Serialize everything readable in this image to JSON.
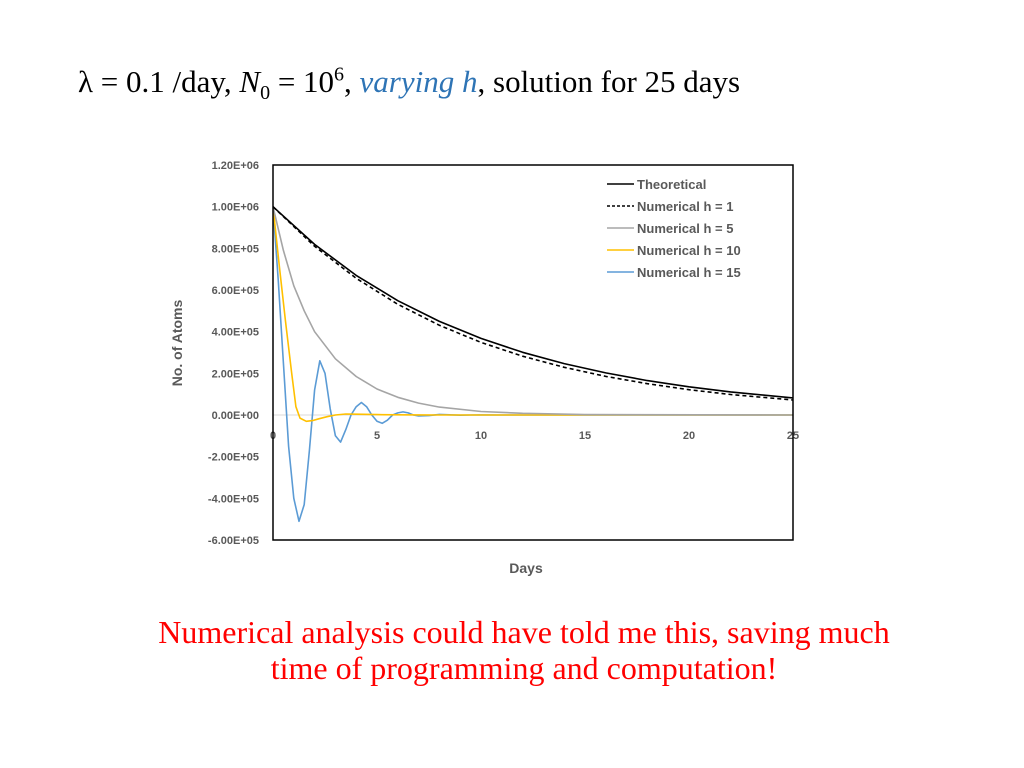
{
  "slide": {
    "title": {
      "lambda_symbol": "λ",
      "lambda_eq": " = 0.1 /day, ",
      "n_symbol": "N",
      "n_subscript": "0",
      "n_eq": " = 10",
      "n_exponent": "6",
      "separator": ", ",
      "highlight": "varying h",
      "rest": ", solution for 25 days",
      "highlight_color": "#2e74b5"
    },
    "conclusion": {
      "line1": "Numerical analysis could have told me this, saving much",
      "line2": "time of programming and computation!",
      "color": "#ff0000"
    }
  },
  "chart_data": {
    "type": "line",
    "title": "",
    "xlabel": "Days",
    "ylabel": "No. of Atoms",
    "xlim": [
      0,
      25
    ],
    "ylim": [
      -600000,
      1200000
    ],
    "x_ticks": [
      0,
      5,
      10,
      15,
      20,
      25
    ],
    "x_tick_labels": [
      "0",
      "5",
      "10",
      "15",
      "20",
      "25"
    ],
    "y_ticks": [
      1200000,
      1000000,
      800000,
      600000,
      400000,
      200000,
      0,
      -200000,
      -400000,
      -600000
    ],
    "y_tick_labels": [
      "1.20E+06",
      "1.00E+06",
      "8.00E+05",
      "6.00E+05",
      "4.00E+05",
      "2.00E+05",
      "0.00E+00",
      "-2.00E+05",
      "-4.00E+05",
      "-6.00E+05"
    ],
    "grid": false,
    "legend_position": "top-right",
    "series": [
      {
        "name": "Theoretical",
        "color": "#000000",
        "dash": "solid",
        "x": [
          0,
          2,
          4,
          6,
          8,
          10,
          12,
          14,
          16,
          18,
          20,
          22,
          25
        ],
        "values": [
          1000000,
          818700,
          670300,
          548800,
          449300,
          367900,
          301200,
          246600,
          201900,
          165300,
          135300,
          110800,
          82100
        ]
      },
      {
        "name": "Numerical h = 1",
        "color": "#000000",
        "dash": "dashed",
        "x": [
          0,
          2,
          4,
          6,
          8,
          10,
          12,
          14,
          16,
          18,
          20,
          22,
          25
        ],
        "values": [
          1000000,
          810000,
          656100,
          531400,
          430500,
          348700,
          282400,
          228800,
          185300,
          150100,
          121600,
          98500,
          71800
        ]
      },
      {
        "name": "Numerical h = 5",
        "color": "#a5a5a5",
        "dash": "solid",
        "x": [
          0,
          0.5,
          1,
          1.5,
          2,
          3,
          4,
          5,
          6,
          7,
          8,
          10,
          12,
          15,
          25
        ],
        "values": [
          1000000,
          790000,
          620000,
          500000,
          400000,
          270000,
          185000,
          125000,
          85000,
          57000,
          38000,
          17000,
          8000,
          2000,
          0
        ]
      },
      {
        "name": "Numerical h = 10",
        "color": "#ffc000",
        "dash": "solid",
        "x": [
          0,
          0.3,
          0.6,
          0.9,
          1.1,
          1.3,
          1.6,
          1.9,
          2.2,
          2.6,
          3.0,
          3.5,
          4,
          5,
          6,
          7,
          8,
          25
        ],
        "values": [
          1000000,
          720000,
          450000,
          200000,
          40000,
          -15000,
          -30000,
          -27000,
          -18000,
          -8000,
          0,
          5000,
          4000,
          2000,
          1000,
          500,
          0,
          0
        ]
      },
      {
        "name": "Numerical h = 15",
        "color": "#5b9bd5",
        "dash": "solid",
        "x": [
          0,
          0.25,
          0.5,
          0.75,
          1.0,
          1.25,
          1.5,
          1.75,
          2.0,
          2.25,
          2.5,
          2.75,
          3.0,
          3.25,
          3.5,
          3.75,
          4.0,
          4.25,
          4.5,
          4.75,
          5.0,
          5.25,
          5.5,
          5.75,
          6.0,
          6.25,
          6.5,
          6.75,
          7.0,
          7.5,
          8.0,
          8.5,
          9.0,
          9.5,
          10.0,
          11.0,
          12.0,
          25.0
        ],
        "values": [
          1000000,
          650000,
          250000,
          -150000,
          -400000,
          -510000,
          -430000,
          -170000,
          120000,
          260000,
          200000,
          30000,
          -100000,
          -130000,
          -70000,
          0,
          40000,
          60000,
          40000,
          0,
          -30000,
          -40000,
          -25000,
          0,
          10000,
          15000,
          10000,
          0,
          -5000,
          -3000,
          3000,
          1000,
          -1000,
          0,
          500,
          0,
          0,
          0
        ]
      }
    ]
  }
}
